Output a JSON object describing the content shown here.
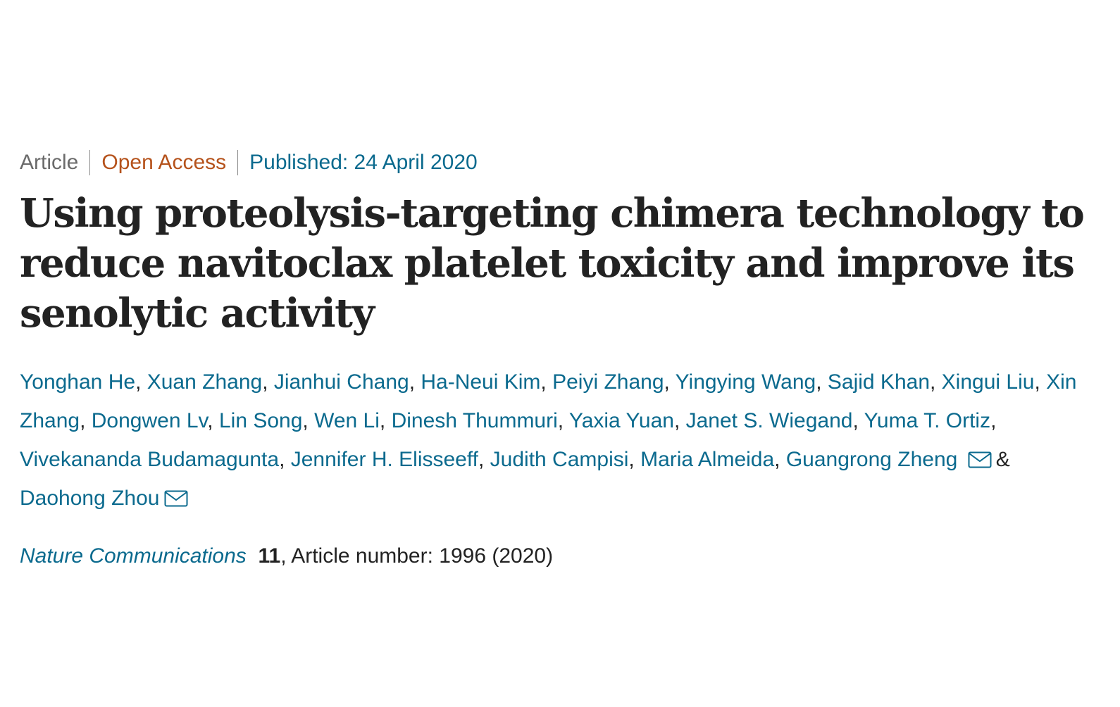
{
  "meta": {
    "type": "Article",
    "access": "Open Access",
    "published": "Published: 24 April 2020"
  },
  "title": "Using proteolysis-targeting chimera technology to reduce navitoclax platelet toxicity and improve its senolytic activity",
  "authors": [
    "Yonghan He",
    "Xuan Zhang",
    "Jianhui Chang",
    "Ha-Neui Kim",
    "Peiyi Zhang",
    "Yingying Wang",
    "Sajid Khan",
    "Xingui Liu",
    "Xin Zhang",
    "Dongwen Lv",
    "Lin Song",
    "Wen Li",
    "Dinesh Thummuri",
    "Yaxia Yuan",
    "Janet S. Wiegand",
    "Yuma T. Ortiz",
    "Vivekananda Budamagunta",
    "Jennifer H. Elisseeff",
    "Judith Campisi",
    "Maria Almeida",
    "Guangrong Zheng",
    "Daohong Zhou"
  ],
  "separators": {
    "comma": ", ",
    "ampersand": "&"
  },
  "icons": {
    "corresponding_author": "mail-icon"
  },
  "citation": {
    "journal": "Nature Communications",
    "volume": "11",
    "rest": ", Article number: 1996 (2020)"
  },
  "colors": {
    "link": "#0b6a8e",
    "open_access": "#b5521b",
    "meta_gray": "#6b6b6b",
    "text": "#222222"
  }
}
